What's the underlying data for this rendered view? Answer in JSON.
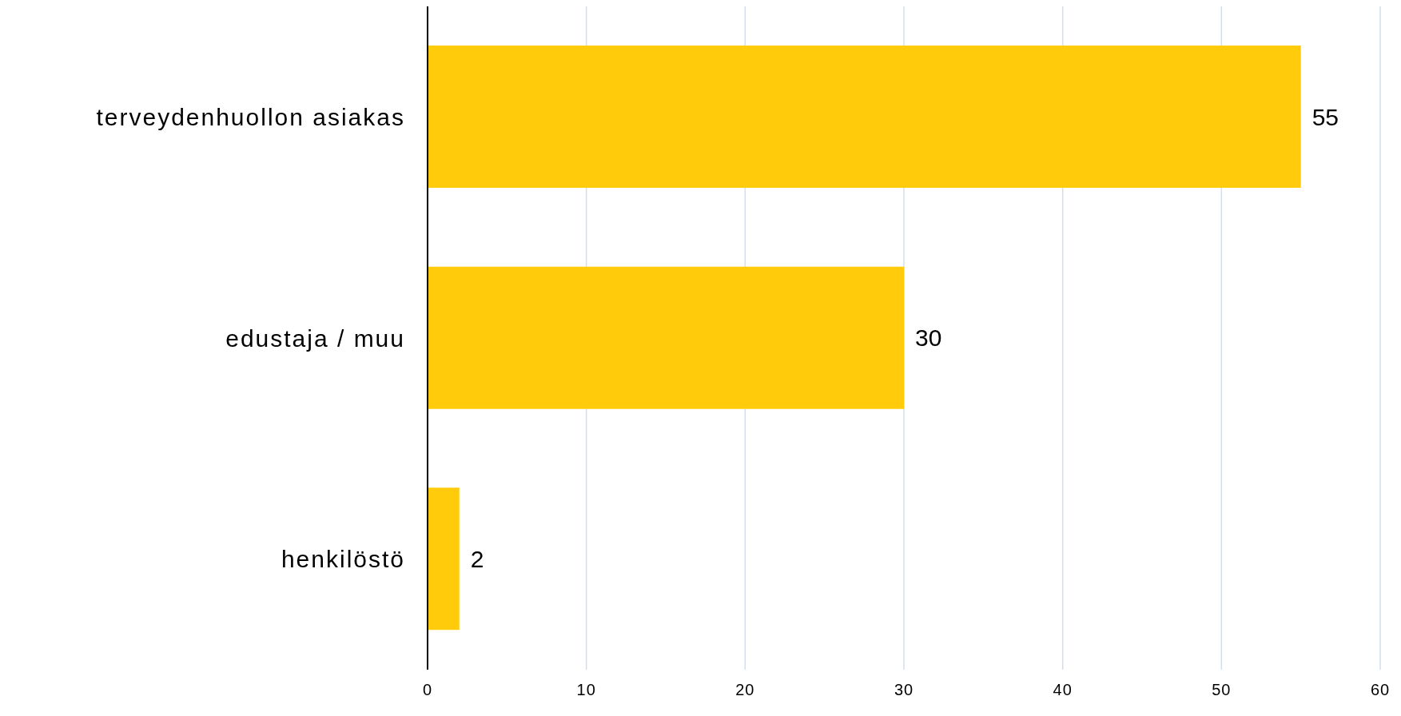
{
  "chart_data": {
    "type": "bar",
    "orientation": "horizontal",
    "categories": [
      "terveydenhuollon asiakas",
      "edustaja / muu",
      "henkilöstö"
    ],
    "values": [
      55,
      30,
      2
    ],
    "color": "#ffcb0b",
    "xlim": [
      0,
      60
    ],
    "xticks": [
      0,
      10,
      20,
      30,
      40,
      50,
      60
    ],
    "grid": "x",
    "data_labels": true
  }
}
